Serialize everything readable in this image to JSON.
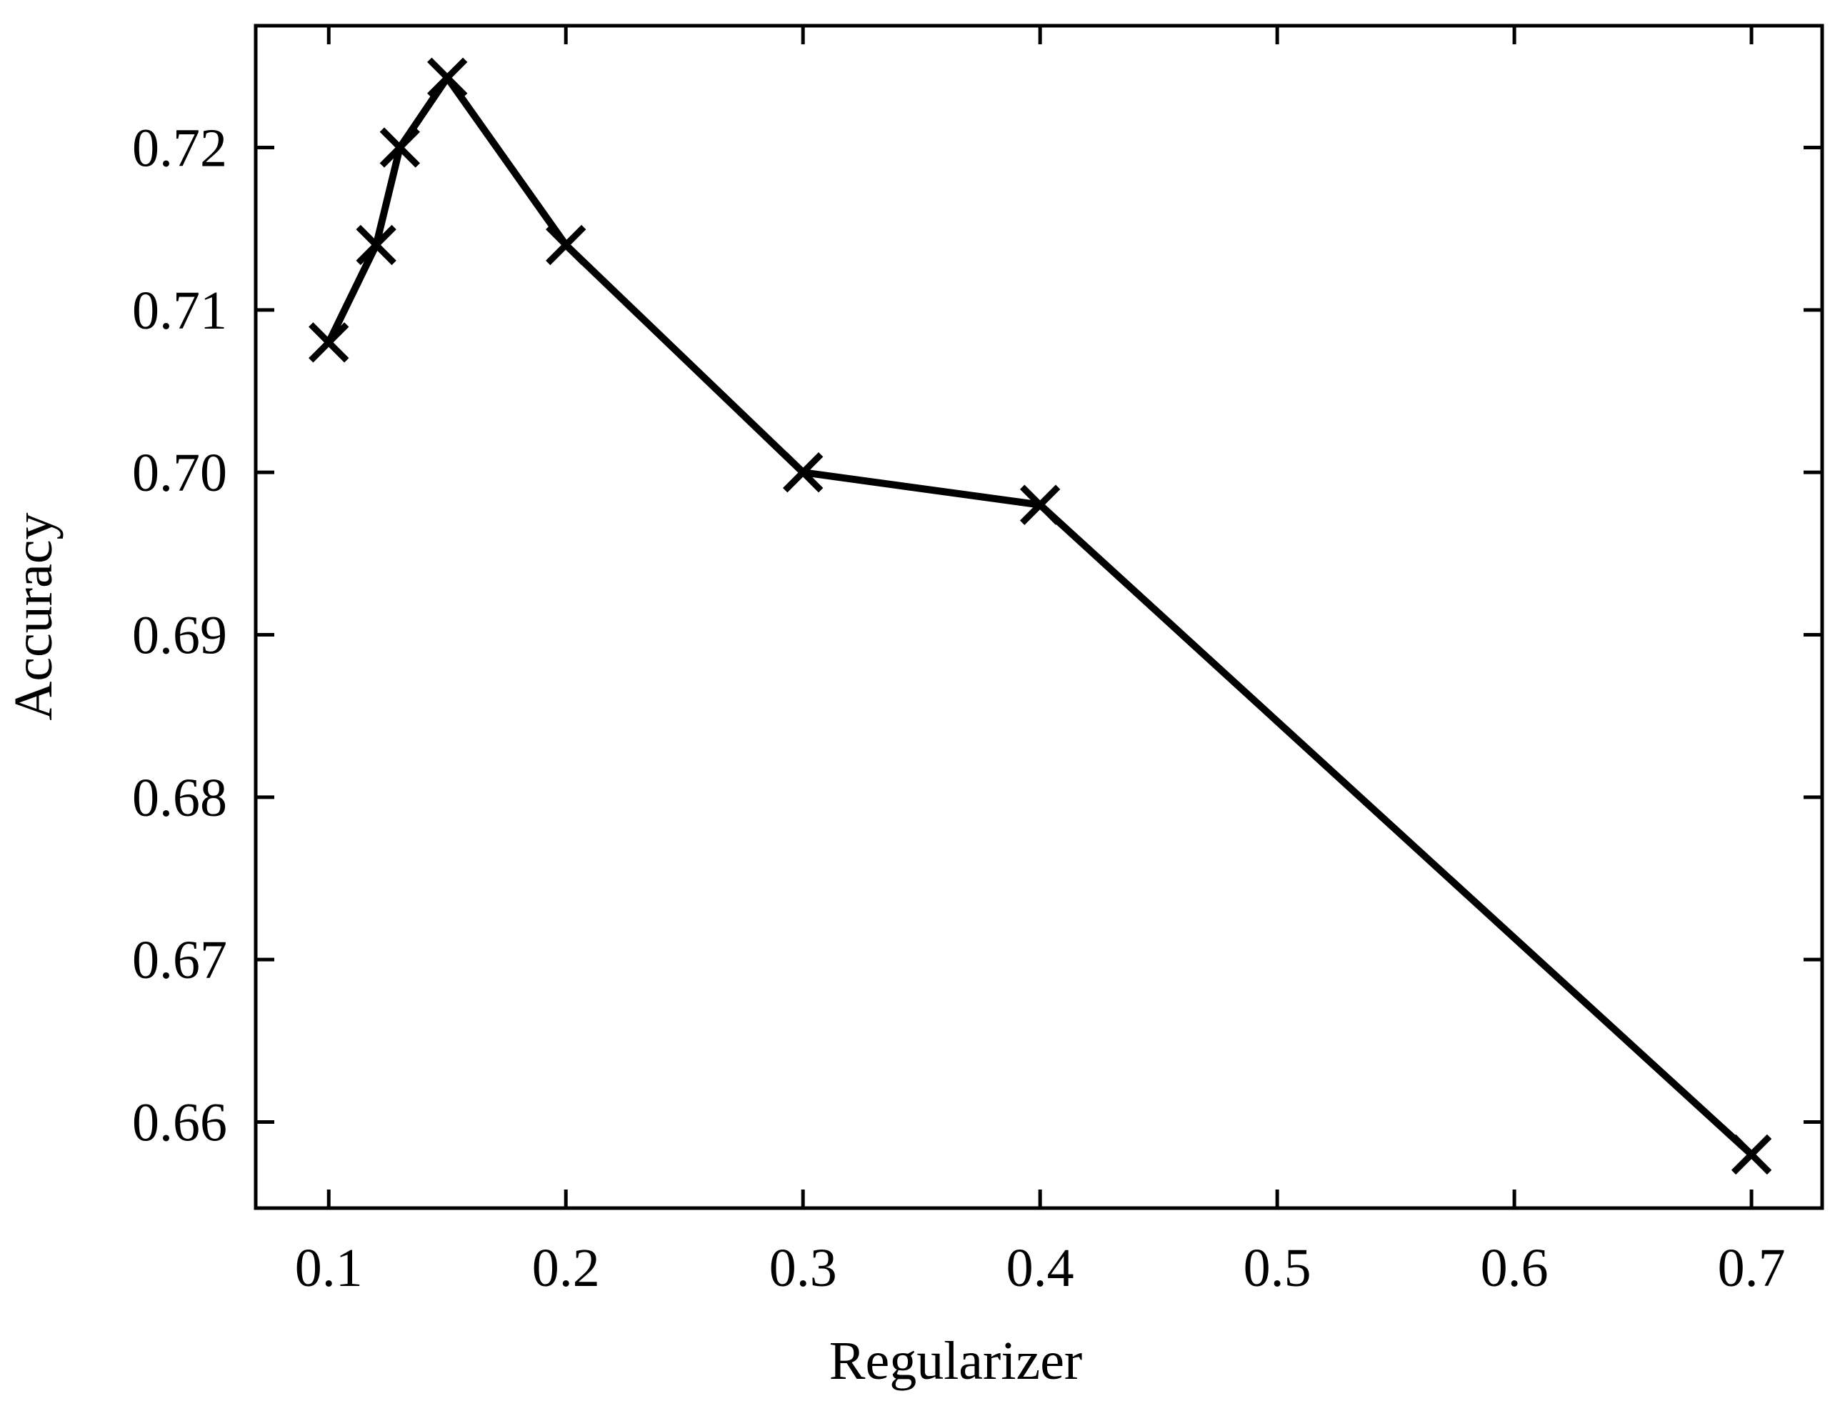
{
  "chart_data": {
    "type": "line",
    "xlabel": "Regularizer",
    "ylabel": "Accuracy",
    "x": [
      0.1,
      0.12,
      0.13,
      0.15,
      0.2,
      0.3,
      0.4,
      0.7
    ],
    "series": [
      {
        "color": "#000000",
        "marker": "x",
        "values": [
          0.708,
          0.714,
          0.72,
          0.7243,
          0.714,
          0.7,
          0.698,
          0.658
        ]
      }
    ],
    "xlim": [
      0.0692,
      0.7298
    ],
    "ylim": [
      0.6547,
      0.7275
    ],
    "xticks": [
      0.1,
      0.2,
      0.3,
      0.4,
      0.5,
      0.6,
      0.7
    ],
    "yticks": [
      0.66,
      0.67,
      0.68,
      0.69,
      {
        "value": 0.7,
        "label": "0.70"
      },
      0.71,
      0.72
    ],
    "grid": false
  }
}
